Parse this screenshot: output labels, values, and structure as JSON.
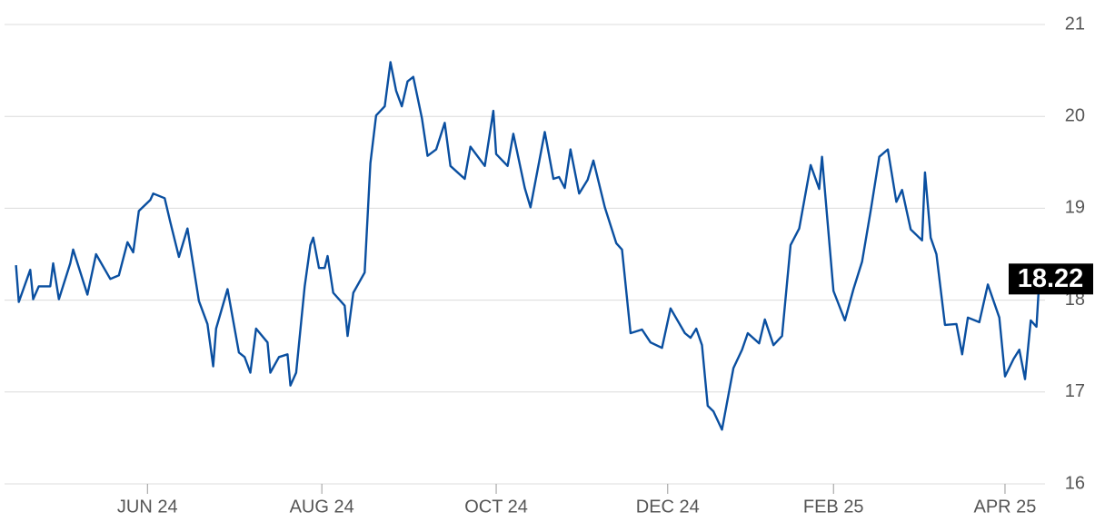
{
  "chart_data": {
    "type": "line",
    "x": [
      0,
      1,
      5,
      6,
      8,
      12,
      13,
      15,
      19,
      20,
      25,
      28,
      33,
      36,
      39,
      41,
      43,
      47,
      48,
      52,
      54,
      57,
      60,
      64,
      67,
      69,
      70,
      74,
      78,
      80,
      82,
      84,
      88,
      89,
      92,
      95,
      96,
      98,
      101,
      103,
      104,
      106,
      108,
      109,
      111,
      115,
      116,
      118,
      122,
      124,
      126,
      129,
      131,
      133,
      135,
      137,
      139,
      142,
      144,
      147,
      150,
      152,
      157,
      159,
      164,
      167,
      168,
      172,
      174,
      178,
      180,
      185,
      188,
      190,
      192,
      194,
      197,
      200,
      202,
      206,
      210,
      212,
      215,
      219,
      222,
      226,
      229,
      234,
      236,
      238,
      240,
      242,
      244,
      247,
      251,
      254,
      256,
      260,
      262,
      265,
      268,
      271,
      274,
      278,
      281,
      282,
      286,
      290,
      293,
      296,
      299,
      302,
      305,
      308,
      310,
      313,
      317,
      318,
      320,
      322,
      325,
      329,
      331,
      333,
      337,
      340,
      344,
      346,
      349,
      351,
      353,
      355,
      357,
      358
    ],
    "values": [
      18.38,
      17.98,
      18.33,
      18.01,
      18.15,
      18.15,
      18.4,
      18.01,
      18.4,
      18.55,
      18.06,
      18.5,
      18.23,
      18.27,
      18.63,
      18.52,
      18.97,
      19.09,
      19.16,
      19.11,
      18.85,
      18.47,
      18.78,
      17.99,
      17.74,
      17.28,
      17.69,
      18.12,
      17.43,
      17.38,
      17.21,
      17.69,
      17.54,
      17.21,
      17.38,
      17.41,
      17.07,
      17.21,
      18.15,
      18.6,
      18.68,
      18.35,
      18.35,
      18.48,
      18.08,
      17.94,
      17.61,
      18.08,
      18.3,
      19.49,
      20.01,
      20.11,
      20.59,
      20.28,
      20.11,
      20.38,
      20.43,
      19.98,
      19.57,
      19.64,
      19.93,
      19.46,
      19.32,
      19.67,
      19.46,
      20.06,
      19.59,
      19.46,
      19.81,
      19.22,
      19.01,
      19.83,
      19.32,
      19.34,
      19.22,
      19.64,
      19.16,
      19.31,
      19.52,
      19.01,
      18.62,
      18.55,
      17.64,
      17.68,
      17.54,
      17.48,
      17.91,
      17.64,
      17.59,
      17.69,
      17.51,
      16.85,
      16.79,
      16.59,
      17.26,
      17.46,
      17.64,
      17.53,
      17.79,
      17.51,
      17.61,
      18.6,
      18.78,
      19.47,
      19.21,
      19.56,
      18.1,
      17.78,
      18.12,
      18.42,
      18.97,
      19.56,
      19.64,
      19.07,
      19.2,
      18.77,
      18.65,
      19.39,
      18.68,
      18.5,
      17.73,
      17.74,
      17.41,
      17.81,
      17.76,
      18.17,
      17.81,
      17.17,
      17.36,
      17.46,
      17.14,
      17.78,
      17.71,
      18.22
    ],
    "color": "#0a4fa0",
    "xlim": [
      -4,
      360
    ],
    "xticks": [
      {
        "value": 46,
        "label": "JUN 24"
      },
      {
        "value": 107,
        "label": "AUG 24"
      },
      {
        "value": 168,
        "label": "OCT 24"
      },
      {
        "value": 228,
        "label": "DEC 24"
      },
      {
        "value": 286,
        "label": "FEB 25"
      },
      {
        "value": 346,
        "label": "APR 25"
      }
    ],
    "ylim": [
      16,
      21
    ],
    "yticks": [
      16,
      17,
      18,
      19,
      20,
      21
    ],
    "grid": true
  }
}
